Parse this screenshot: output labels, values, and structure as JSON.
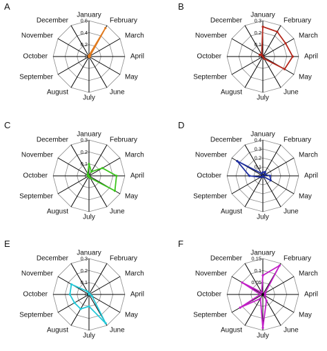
{
  "months": [
    "January",
    "February",
    "March",
    "April",
    "May",
    "June",
    "July",
    "August",
    "September",
    "October",
    "November",
    "December"
  ],
  "chart_data": [
    {
      "type": "radar",
      "panel": "A",
      "color": "#e07a1f",
      "rmax": 0.6,
      "ticks": [
        "0.6",
        "0.4",
        "0.2",
        "0"
      ],
      "series": [
        {
          "values": [
            0.02,
            0.55,
            0.02,
            0.01,
            0.01,
            0.01,
            0.0,
            0.0,
            0.0,
            0.0,
            0.0,
            0.01
          ]
        }
      ]
    },
    {
      "type": "radar",
      "panel": "B",
      "color": "#b3261a",
      "rmax": 0.3,
      "ticks": [
        "0.3",
        "0.2",
        "0.1",
        "0"
      ],
      "series": [
        {
          "values": [
            0.25,
            0.24,
            0.22,
            0.25,
            0.21,
            0.02,
            0.0,
            0.0,
            0.0,
            0.0,
            0.03,
            0.02
          ]
        }
      ]
    },
    {
      "type": "radar",
      "panel": "C",
      "color": "#3cc41e",
      "rmax": 0.3,
      "ticks": [
        "0.3",
        "0.2",
        "0.1",
        "0"
      ],
      "series": [
        {
          "values": [
            0.1,
            0.04,
            0.13,
            0.23,
            0.25,
            0.02,
            0.01,
            0.0,
            0.0,
            0.01,
            0.01,
            0.02
          ]
        }
      ]
    },
    {
      "type": "radar",
      "panel": "D",
      "color": "#1f2fa0",
      "rmax": 0.4,
      "ticks": [
        "0.4",
        "0.3",
        "0.2",
        "0.1",
        "0"
      ],
      "series": [
        {
          "values": [
            0.04,
            0.05,
            0.03,
            0.08,
            0.1,
            0.01,
            0.0,
            0.01,
            0.03,
            0.15,
            0.33,
            0.03
          ]
        }
      ]
    },
    {
      "type": "radar",
      "panel": "E",
      "color": "#22c8d8",
      "rmax": 0.3,
      "ticks": [
        "0.3",
        "0.2",
        "0.1",
        "0"
      ],
      "series": [
        {
          "values": [
            0.01,
            0.0,
            0.0,
            0.01,
            0.03,
            0.28,
            0.1,
            0.14,
            0.14,
            0.16,
            0.17,
            0.03
          ]
        }
      ]
    },
    {
      "type": "radar",
      "panel": "F",
      "color": "#c21fc7",
      "rmax": 0.15,
      "ticks": [
        "0.15",
        "0.1",
        "0.05",
        "0"
      ],
      "series": [
        {
          "values": [
            0.08,
            0.14,
            0.01,
            0.01,
            0.01,
            0.03,
            0.14,
            0.02,
            0.11,
            0.01,
            0.1,
            0.01
          ]
        }
      ]
    }
  ]
}
